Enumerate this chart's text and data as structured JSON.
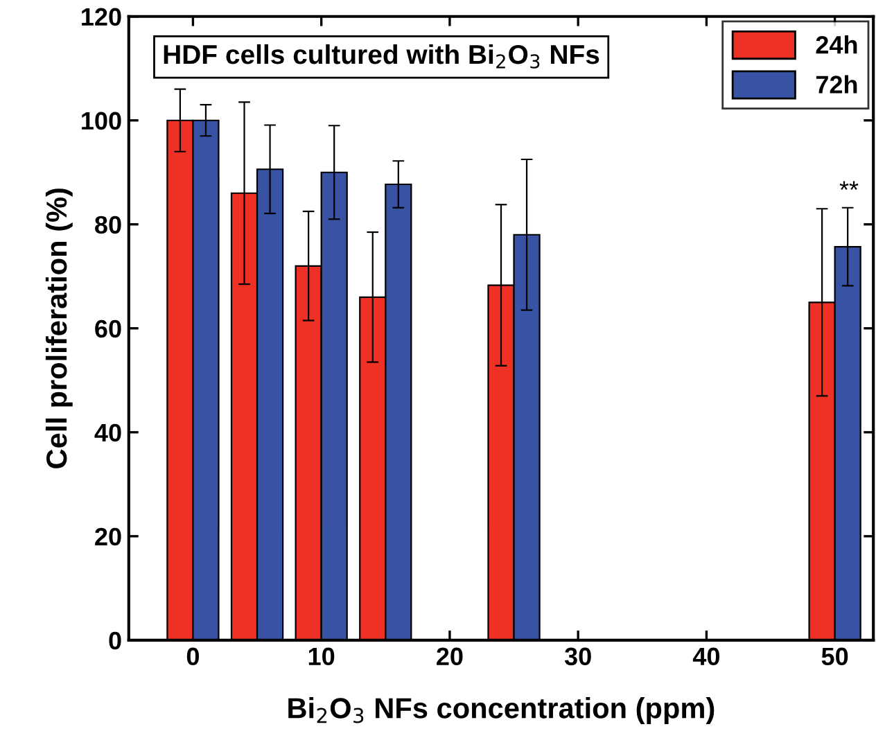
{
  "chart_data": {
    "type": "bar",
    "title": "HDF cells cultured with Bi$_{2}$O$_{3}$ NFs",
    "xlabel": "Bi$_{2}$O$_{3}$ NFs concentration (ppm)",
    "ylabel": "Cell proliferation (%)",
    "x": [
      0,
      5,
      10,
      15,
      25,
      50
    ],
    "series": [
      {
        "name": "24h",
        "color": "#ee3124",
        "values": [
          100,
          86,
          72,
          66,
          68.3,
          65
        ],
        "errors": [
          6,
          17.5,
          10.5,
          12.5,
          15.5,
          18
        ]
      },
      {
        "name": "72h",
        "color": "#3953a4",
        "values": [
          100,
          90.6,
          90,
          87.7,
          78,
          75.7
        ],
        "errors": [
          3,
          8.5,
          9,
          4.5,
          14.5,
          7.5
        ]
      }
    ],
    "xlim": [
      -5,
      53
    ],
    "xticks": [
      0,
      10,
      20,
      30,
      40,
      50
    ],
    "ylim": [
      0,
      120
    ],
    "yticks": [
      0,
      20,
      40,
      60,
      80,
      100,
      120
    ],
    "annotations": [
      {
        "text": "**",
        "x": 51.1,
        "y": 84
      }
    ],
    "grid": false,
    "legend": "top right"
  }
}
